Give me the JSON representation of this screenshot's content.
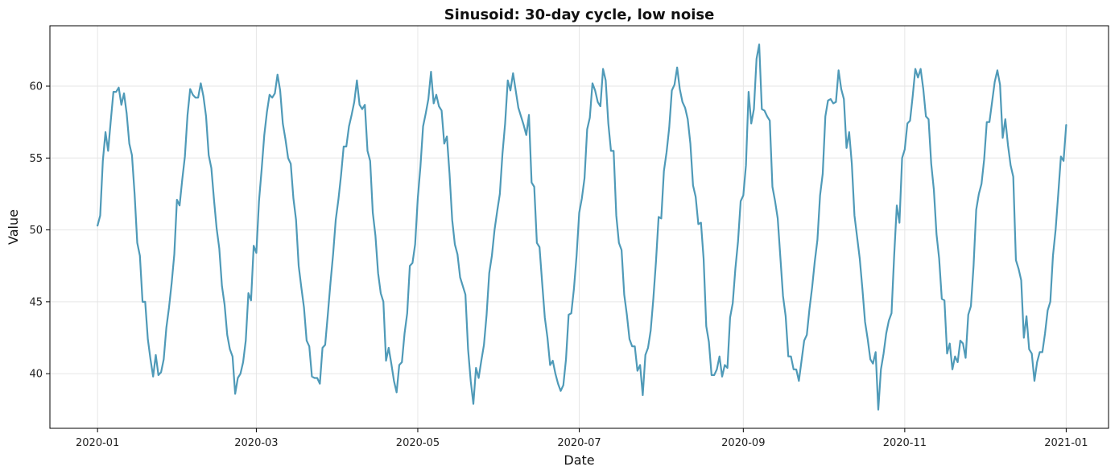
{
  "chart_data": {
    "type": "line",
    "title": "Sinusoid: 30-day cycle, low noise",
    "xlabel": "Date",
    "ylabel": "Value",
    "x_start": "2020-01-01",
    "x_end": "2020-12-30",
    "x_step": "1 day",
    "xlim": [
      "2019-12-14",
      "2021-01-17"
    ],
    "ylim": [
      36.2,
      64.2
    ],
    "x_ticks": [
      "2020-01",
      "2020-03",
      "2020-05",
      "2020-07",
      "2020-09",
      "2020-11",
      "2021-01"
    ],
    "y_ticks": [
      40,
      45,
      50,
      55,
      60
    ],
    "grid": true,
    "legend": "none",
    "line_color": "#4f9ab8",
    "series": [
      {
        "values": [
          50.3,
          51.0,
          54.8,
          56.8,
          55.5,
          57.6,
          59.6,
          59.6,
          59.9,
          58.7,
          59.5,
          58.1,
          56.0,
          55.2,
          52.5,
          49.1,
          48.2,
          45.0,
          45.0,
          42.4,
          41.0,
          39.8,
          41.3,
          39.9,
          40.1,
          41.0,
          43.2,
          44.6,
          46.3,
          48.3,
          52.1,
          51.7,
          53.5,
          55.1,
          58.0,
          59.8,
          59.4,
          59.2,
          59.2,
          60.2,
          59.3,
          57.9,
          55.2,
          54.3,
          52.1,
          50.1,
          48.7,
          46.1,
          44.8,
          42.7,
          41.7,
          41.2,
          38.6,
          39.7,
          40.0,
          40.8,
          42.3,
          45.6,
          45.1,
          48.9,
          48.4,
          52.0,
          54.2,
          56.6,
          58.2,
          59.4,
          59.2,
          59.5,
          60.8,
          59.7,
          57.4,
          56.3,
          55.0,
          54.6,
          52.2,
          50.7,
          47.5,
          46.0,
          44.6,
          42.3,
          41.9,
          39.8,
          39.7,
          39.7,
          39.3,
          41.8,
          42.0,
          44.1,
          46.3,
          48.3,
          50.7,
          52.1,
          53.8,
          55.8,
          55.8,
          57.2,
          58.0,
          58.9,
          60.4,
          58.7,
          58.4,
          58.7,
          55.5,
          54.8,
          51.2,
          49.6,
          47.0,
          45.6,
          45.0,
          40.9,
          41.8,
          40.7,
          39.5,
          38.7,
          40.6,
          40.8,
          42.8,
          44.2,
          47.5,
          47.7,
          49.0,
          52.2,
          54.4,
          57.2,
          58.1,
          59.1,
          61.0,
          58.8,
          59.4,
          58.6,
          58.3,
          56.0,
          56.5,
          53.9,
          50.7,
          49.0,
          48.3,
          46.7,
          46.1,
          45.5,
          41.7,
          39.5,
          37.9,
          40.4,
          39.7,
          40.9,
          42.0,
          44.1,
          47.0,
          48.2,
          50.0,
          51.3,
          52.5,
          55.3,
          57.4,
          60.4,
          59.7,
          60.9,
          59.7,
          58.5,
          57.9,
          57.3,
          56.6,
          58.0,
          53.3,
          53.0,
          49.1,
          48.8,
          46.3,
          43.9,
          42.5,
          40.6,
          40.9,
          40.0,
          39.3,
          38.8,
          39.2,
          41.0,
          44.1,
          44.2,
          45.9,
          48.2,
          51.2,
          52.2,
          53.6,
          57.0,
          57.8,
          60.2,
          59.7,
          58.9,
          58.6,
          61.2,
          60.4,
          57.4,
          55.5,
          55.5,
          51.0,
          49.1,
          48.6,
          45.5,
          44.1,
          42.4,
          41.9,
          41.9,
          40.2,
          40.6,
          38.5,
          41.3,
          41.8,
          43.0,
          45.2,
          47.8,
          50.9,
          50.8,
          54.1,
          55.4,
          57.1,
          59.7,
          60.1,
          61.3,
          59.8,
          58.9,
          58.5,
          57.7,
          56.0,
          53.1,
          52.3,
          50.4,
          50.5,
          48.0,
          43.3,
          42.2,
          39.9,
          39.9,
          40.3,
          41.2,
          39.8,
          40.6,
          40.4,
          43.9,
          44.9,
          47.3,
          49.2,
          52.0,
          52.4,
          54.5,
          59.6,
          57.4,
          58.4,
          61.9,
          62.9,
          58.4,
          58.3,
          57.9,
          57.6,
          53.0,
          52.0,
          50.8,
          48.1,
          45.4,
          44.0,
          41.2,
          41.2,
          40.3,
          40.3,
          39.5,
          40.9,
          42.3,
          42.7,
          44.5,
          46.0,
          47.8,
          49.3,
          52.4,
          53.9,
          57.9,
          59.0,
          59.1,
          58.8,
          58.9,
          61.1,
          59.8,
          59.1,
          55.7,
          56.8,
          54.6,
          51.0,
          49.5,
          48.0,
          45.9,
          43.6,
          42.4,
          41.0,
          40.7,
          41.5,
          37.5,
          40.3,
          41.4,
          42.8,
          43.7,
          44.2,
          48.2,
          51.7,
          50.5,
          55.0,
          55.6,
          57.4,
          57.6,
          59.3,
          61.2,
          60.6,
          61.2,
          59.8,
          57.9,
          57.7,
          54.6,
          52.8,
          49.7,
          48.0,
          45.2,
          45.1,
          41.4,
          42.1,
          40.3,
          41.2,
          40.8,
          42.3,
          42.1,
          41.1,
          44.1,
          44.7,
          47.5,
          51.4,
          52.5,
          53.2,
          54.9,
          57.5,
          57.5,
          58.9,
          60.3,
          61.1,
          60.1,
          56.4,
          57.7,
          55.9,
          54.5,
          53.7,
          47.9,
          47.3,
          46.5,
          42.5,
          44.0,
          41.7,
          41.4,
          39.5,
          40.8,
          41.5,
          41.5,
          42.8,
          44.4,
          45.0,
          48.2,
          50.0,
          52.5,
          55.1,
          54.8,
          57.3
        ]
      }
    ]
  }
}
